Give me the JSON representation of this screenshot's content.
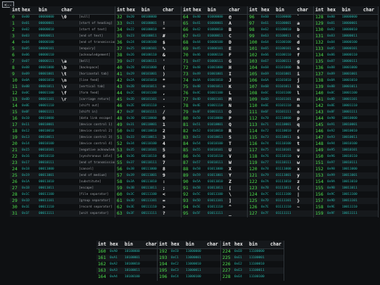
{
  "nav": {
    "back_label": "<--"
  },
  "headers": {
    "int": "int",
    "hex": "hex",
    "bin": "bin",
    "char": "char"
  },
  "columns": [
    {
      "rows": [
        [
          "0",
          "0x00",
          "00000000",
          "\\0",
          "[null]"
        ],
        [
          "1",
          "0x01",
          "00000001",
          "",
          "[start of heading]"
        ],
        [
          "2",
          "0x02",
          "00000010",
          "",
          "[start of text]"
        ],
        [
          "3",
          "0x03",
          "00000011",
          "",
          "[end of text]"
        ],
        [
          "4",
          "0x04",
          "00000100",
          "",
          "[end of transmission]"
        ],
        [
          "5",
          "0x05",
          "00000101",
          "",
          "[enquiry]"
        ],
        [
          "6",
          "0x06",
          "00000110",
          "",
          "[acknowledgement]"
        ],
        [
          "7",
          "0x07",
          "00000111",
          "\\a",
          "[bell]"
        ],
        [
          "8",
          "0x08",
          "00001000",
          "\\b",
          "[backspace]"
        ],
        [
          "9",
          "0x09",
          "00001001",
          "\\t",
          "[horizontal tab]"
        ],
        [
          "10",
          "0x0A",
          "00001010",
          "\\n",
          "[line feed]"
        ],
        [
          "11",
          "0x0B",
          "00001011",
          "\\v",
          "[vertical tab]"
        ],
        [
          "12",
          "0x0C",
          "00001100",
          "\\f",
          "[form feed]"
        ],
        [
          "13",
          "0x0D",
          "00001101",
          "\\r",
          "[carriage return]"
        ],
        [
          "14",
          "0x0E",
          "00001110",
          "",
          "[shift out]"
        ],
        [
          "15",
          "0x0F",
          "00001111",
          "",
          "[shift in]"
        ],
        [
          "16",
          "0x10",
          "00010000",
          "",
          "[data link escape]"
        ],
        [
          "17",
          "0x11",
          "00010001",
          "",
          "[device control 1]"
        ],
        [
          "18",
          "0x12",
          "00010010",
          "",
          "[device control 2]"
        ],
        [
          "19",
          "0x13",
          "00010011",
          "",
          "[device control 3]"
        ],
        [
          "20",
          "0x14",
          "00010100",
          "",
          "[device control 4]"
        ],
        [
          "21",
          "0x15",
          "00010101",
          "",
          "[negative acknowledgement]"
        ],
        [
          "22",
          "0x16",
          "00010110",
          "",
          "[synchronous idle]"
        ],
        [
          "23",
          "0x17",
          "00010111",
          "",
          "[end of transmission block]"
        ],
        [
          "24",
          "0x18",
          "00011000",
          "",
          "[cancel]"
        ],
        [
          "25",
          "0x19",
          "00011001",
          "",
          "[end of medium]"
        ],
        [
          "26",
          "0x1A",
          "00011010",
          "",
          "[substitute]"
        ],
        [
          "27",
          "0x1B",
          "00011011",
          "",
          "[escape]"
        ],
        [
          "28",
          "0x1C",
          "00011100",
          "",
          "[file separator]"
        ],
        [
          "29",
          "0x1D",
          "00011101",
          "",
          "[group separator]"
        ],
        [
          "30",
          "0x1E",
          "00011110",
          "",
          "[record separator]"
        ],
        [
          "31",
          "0x1F",
          "00011111",
          "",
          "[unit separator]"
        ]
      ]
    },
    {
      "rows": [
        [
          "32",
          "0x20",
          "00100000",
          "",
          "[space]"
        ],
        [
          "33",
          "0x21",
          "00100001",
          "!",
          ""
        ],
        [
          "34",
          "0x22",
          "00100010",
          "\"",
          ""
        ],
        [
          "35",
          "0x23",
          "00100011",
          "#",
          ""
        ],
        [
          "36",
          "0x24",
          "00100100",
          "$",
          ""
        ],
        [
          "37",
          "0x25",
          "00100101",
          "%",
          ""
        ],
        [
          "38",
          "0x26",
          "00100110",
          "&",
          ""
        ],
        [
          "39",
          "0x27",
          "00100111",
          "'",
          ""
        ],
        [
          "40",
          "0x28",
          "00101000",
          "(",
          ""
        ],
        [
          "41",
          "0x29",
          "00101001",
          ")",
          ""
        ],
        [
          "42",
          "0x2A",
          "00101010",
          "*",
          ""
        ],
        [
          "43",
          "0x2B",
          "00101011",
          "+",
          ""
        ],
        [
          "44",
          "0x2C",
          "00101100",
          ",",
          ""
        ],
        [
          "45",
          "0x2D",
          "00101101",
          "-",
          ""
        ],
        [
          "46",
          "0x2E",
          "00101110",
          ".",
          ""
        ],
        [
          "47",
          "0x2F",
          "00101111",
          "/",
          ""
        ],
        [
          "48",
          "0x30",
          "00110000",
          "0",
          ""
        ],
        [
          "49",
          "0x31",
          "00110001",
          "1",
          ""
        ],
        [
          "50",
          "0x32",
          "00110010",
          "2",
          ""
        ],
        [
          "51",
          "0x33",
          "00110011",
          "3",
          ""
        ],
        [
          "52",
          "0x34",
          "00110100",
          "4",
          ""
        ],
        [
          "53",
          "0x35",
          "00110101",
          "5",
          ""
        ],
        [
          "54",
          "0x36",
          "00110110",
          "6",
          ""
        ],
        [
          "55",
          "0x37",
          "00110111",
          "7",
          ""
        ],
        [
          "56",
          "0x38",
          "00111000",
          "8",
          ""
        ],
        [
          "57",
          "0x39",
          "00111001",
          "9",
          ""
        ],
        [
          "58",
          "0x3A",
          "00111010",
          ":",
          ""
        ],
        [
          "59",
          "0x3B",
          "00111011",
          ";",
          ""
        ],
        [
          "60",
          "0x3C",
          "00111100",
          "<",
          ""
        ],
        [
          "61",
          "0x3D",
          "00111101",
          "=",
          ""
        ],
        [
          "62",
          "0x3E",
          "00111110",
          ">",
          ""
        ],
        [
          "63",
          "0x3F",
          "00111111",
          "?",
          ""
        ]
      ]
    },
    {
      "rows": [
        [
          "64",
          "0x40",
          "01000000",
          "@",
          ""
        ],
        [
          "65",
          "0x41",
          "01000001",
          "A",
          ""
        ],
        [
          "66",
          "0x42",
          "01000010",
          "B",
          ""
        ],
        [
          "67",
          "0x43",
          "01000011",
          "C",
          ""
        ],
        [
          "68",
          "0x44",
          "01000100",
          "D",
          ""
        ],
        [
          "69",
          "0x45",
          "01000101",
          "E",
          ""
        ],
        [
          "70",
          "0x46",
          "01000110",
          "F",
          ""
        ],
        [
          "71",
          "0x47",
          "01000111",
          "G",
          ""
        ],
        [
          "72",
          "0x48",
          "01001000",
          "H",
          ""
        ],
        [
          "73",
          "0x49",
          "01001001",
          "I",
          ""
        ],
        [
          "74",
          "0x4A",
          "01001010",
          "J",
          ""
        ],
        [
          "75",
          "0x4B",
          "01001011",
          "K",
          ""
        ],
        [
          "76",
          "0x4C",
          "01001100",
          "L",
          ""
        ],
        [
          "77",
          "0x4D",
          "01001101",
          "M",
          ""
        ],
        [
          "78",
          "0x4E",
          "01001110",
          "N",
          ""
        ],
        [
          "79",
          "0x4F",
          "01001111",
          "O",
          ""
        ],
        [
          "80",
          "0x50",
          "01010000",
          "P",
          ""
        ],
        [
          "81",
          "0x51",
          "01010001",
          "Q",
          ""
        ],
        [
          "82",
          "0x52",
          "01010010",
          "R",
          ""
        ],
        [
          "83",
          "0x53",
          "01010011",
          "S",
          ""
        ],
        [
          "84",
          "0x54",
          "01010100",
          "T",
          ""
        ],
        [
          "85",
          "0x55",
          "01010101",
          "U",
          ""
        ],
        [
          "86",
          "0x56",
          "01010110",
          "V",
          ""
        ],
        [
          "87",
          "0x57",
          "01010111",
          "W",
          ""
        ],
        [
          "88",
          "0x58",
          "01011000",
          "X",
          ""
        ],
        [
          "89",
          "0x59",
          "01011001",
          "Y",
          ""
        ],
        [
          "90",
          "0x5A",
          "01011010",
          "Z",
          ""
        ],
        [
          "91",
          "0x5B",
          "01011011",
          "[",
          ""
        ],
        [
          "92",
          "0x5C",
          "01011100",
          "\\",
          ""
        ],
        [
          "93",
          "0x5D",
          "01011101",
          "]",
          ""
        ],
        [
          "94",
          "0x5E",
          "01011110",
          "^",
          ""
        ],
        [
          "95",
          "0x5F",
          "01011111",
          "_",
          ""
        ]
      ]
    },
    {
      "rows": [
        [
          "96",
          "0x60",
          "01100000",
          "`",
          ""
        ],
        [
          "97",
          "0x61",
          "01100001",
          "a",
          ""
        ],
        [
          "98",
          "0x62",
          "01100010",
          "b",
          ""
        ],
        [
          "99",
          "0x63",
          "01100011",
          "c",
          ""
        ],
        [
          "100",
          "0x64",
          "01100100",
          "d",
          ""
        ],
        [
          "101",
          "0x65",
          "01100101",
          "e",
          ""
        ],
        [
          "102",
          "0x66",
          "01100110",
          "f",
          ""
        ],
        [
          "103",
          "0x67",
          "01100111",
          "g",
          ""
        ],
        [
          "104",
          "0x68",
          "01101000",
          "h",
          ""
        ],
        [
          "105",
          "0x69",
          "01101001",
          "i",
          ""
        ],
        [
          "106",
          "0x6A",
          "01101010",
          "j",
          ""
        ],
        [
          "107",
          "0x6B",
          "01101011",
          "k",
          ""
        ],
        [
          "108",
          "0x6C",
          "01101100",
          "l",
          ""
        ],
        [
          "109",
          "0x6D",
          "01101101",
          "m",
          ""
        ],
        [
          "110",
          "0x6E",
          "01101110",
          "n",
          ""
        ],
        [
          "111",
          "0x6F",
          "01101111",
          "o",
          ""
        ],
        [
          "112",
          "0x70",
          "01110000",
          "p",
          ""
        ],
        [
          "113",
          "0x71",
          "01110001",
          "q",
          ""
        ],
        [
          "114",
          "0x72",
          "01110010",
          "r",
          ""
        ],
        [
          "115",
          "0x73",
          "01110011",
          "s",
          ""
        ],
        [
          "116",
          "0x74",
          "01110100",
          "t",
          ""
        ],
        [
          "117",
          "0x75",
          "01110101",
          "u",
          ""
        ],
        [
          "118",
          "0x76",
          "01110110",
          "v",
          ""
        ],
        [
          "119",
          "0x77",
          "01110111",
          "w",
          ""
        ],
        [
          "120",
          "0x78",
          "01111000",
          "x",
          ""
        ],
        [
          "121",
          "0x79",
          "01111001",
          "y",
          ""
        ],
        [
          "122",
          "0x7A",
          "01111010",
          "z",
          ""
        ],
        [
          "123",
          "0x7B",
          "01111011",
          "{",
          ""
        ],
        [
          "124",
          "0x7C",
          "01111100",
          "|",
          ""
        ],
        [
          "125",
          "0x7D",
          "01111101",
          "}",
          ""
        ],
        [
          "126",
          "0x7E",
          "01111110",
          "~",
          ""
        ],
        [
          "127",
          "0x7F",
          "01111111",
          "",
          "[del]"
        ]
      ]
    },
    {
      "rows": [
        [
          "128",
          "0x80",
          "10000000",
          "",
          ""
        ],
        [
          "129",
          "0x81",
          "10000001",
          "",
          ""
        ],
        [
          "130",
          "0x82",
          "10000010",
          "",
          ""
        ],
        [
          "131",
          "0x83",
          "10000011",
          "",
          ""
        ],
        [
          "132",
          "0x84",
          "10000100",
          "",
          ""
        ],
        [
          "133",
          "0x85",
          "10000101",
          "",
          ""
        ],
        [
          "134",
          "0x86",
          "10000110",
          "",
          ""
        ],
        [
          "135",
          "0x87",
          "10000111",
          "",
          ""
        ],
        [
          "136",
          "0x88",
          "10001000",
          "",
          ""
        ],
        [
          "137",
          "0x89",
          "10001001",
          "",
          ""
        ],
        [
          "138",
          "0x8A",
          "10001010",
          "",
          ""
        ],
        [
          "139",
          "0x8B",
          "10001011",
          "",
          ""
        ],
        [
          "140",
          "0x8C",
          "10001100",
          "",
          ""
        ],
        [
          "141",
          "0x8D",
          "10001101",
          "",
          ""
        ],
        [
          "142",
          "0x8E",
          "10001110",
          "",
          ""
        ],
        [
          "143",
          "0x8F",
          "10001111",
          "",
          ""
        ],
        [
          "144",
          "0x90",
          "10010000",
          "",
          ""
        ],
        [
          "145",
          "0x91",
          "10010001",
          "",
          ""
        ],
        [
          "146",
          "0x92",
          "10010010",
          "",
          ""
        ],
        [
          "147",
          "0x93",
          "10010011",
          "",
          ""
        ],
        [
          "148",
          "0x94",
          "10010100",
          "",
          ""
        ],
        [
          "149",
          "0x95",
          "10010101",
          "",
          ""
        ],
        [
          "150",
          "0x96",
          "10010110",
          "",
          ""
        ],
        [
          "151",
          "0x97",
          "10010111",
          "",
          ""
        ],
        [
          "152",
          "0x98",
          "10011000",
          "",
          ""
        ],
        [
          "153",
          "0x99",
          "10011001",
          "",
          ""
        ],
        [
          "154",
          "0x9A",
          "10011010",
          "",
          ""
        ],
        [
          "155",
          "0x9B",
          "10011011",
          "",
          ""
        ],
        [
          "156",
          "0x9C",
          "10011100",
          "",
          ""
        ],
        [
          "157",
          "0x9D",
          "10011101",
          "",
          ""
        ],
        [
          "158",
          "0x9E",
          "10011110",
          "",
          ""
        ],
        [
          "159",
          "0x9F",
          "10011111",
          "",
          ""
        ]
      ]
    },
    {
      "rows": [
        [
          "160",
          "0xA0",
          "10100000",
          "",
          ""
        ],
        [
          "161",
          "0xA1",
          "10100001",
          "",
          ""
        ],
        [
          "162",
          "0xA2",
          "10100010",
          "",
          ""
        ],
        [
          "163",
          "0xA3",
          "10100011",
          "",
          ""
        ],
        [
          "164",
          "0xA4",
          "10100100",
          "",
          ""
        ]
      ]
    },
    {
      "rows": [
        [
          "192",
          "0xC0",
          "11000000",
          "",
          ""
        ],
        [
          "193",
          "0xC1",
          "11000001",
          "",
          ""
        ],
        [
          "194",
          "0xC2",
          "11000010",
          "",
          ""
        ],
        [
          "195",
          "0xC3",
          "11000011",
          "",
          ""
        ],
        [
          "196",
          "0xC4",
          "11000100",
          "",
          ""
        ]
      ]
    },
    {
      "rows": [
        [
          "224",
          "0xE0",
          "11100000",
          "",
          ""
        ],
        [
          "225",
          "0xE1",
          "11100001",
          "",
          ""
        ],
        [
          "226",
          "0xE2",
          "11100010",
          "",
          ""
        ],
        [
          "227",
          "0xE3",
          "11100011",
          "",
          ""
        ],
        [
          "228",
          "0xE4",
          "11100100",
          "",
          ""
        ]
      ]
    }
  ]
}
